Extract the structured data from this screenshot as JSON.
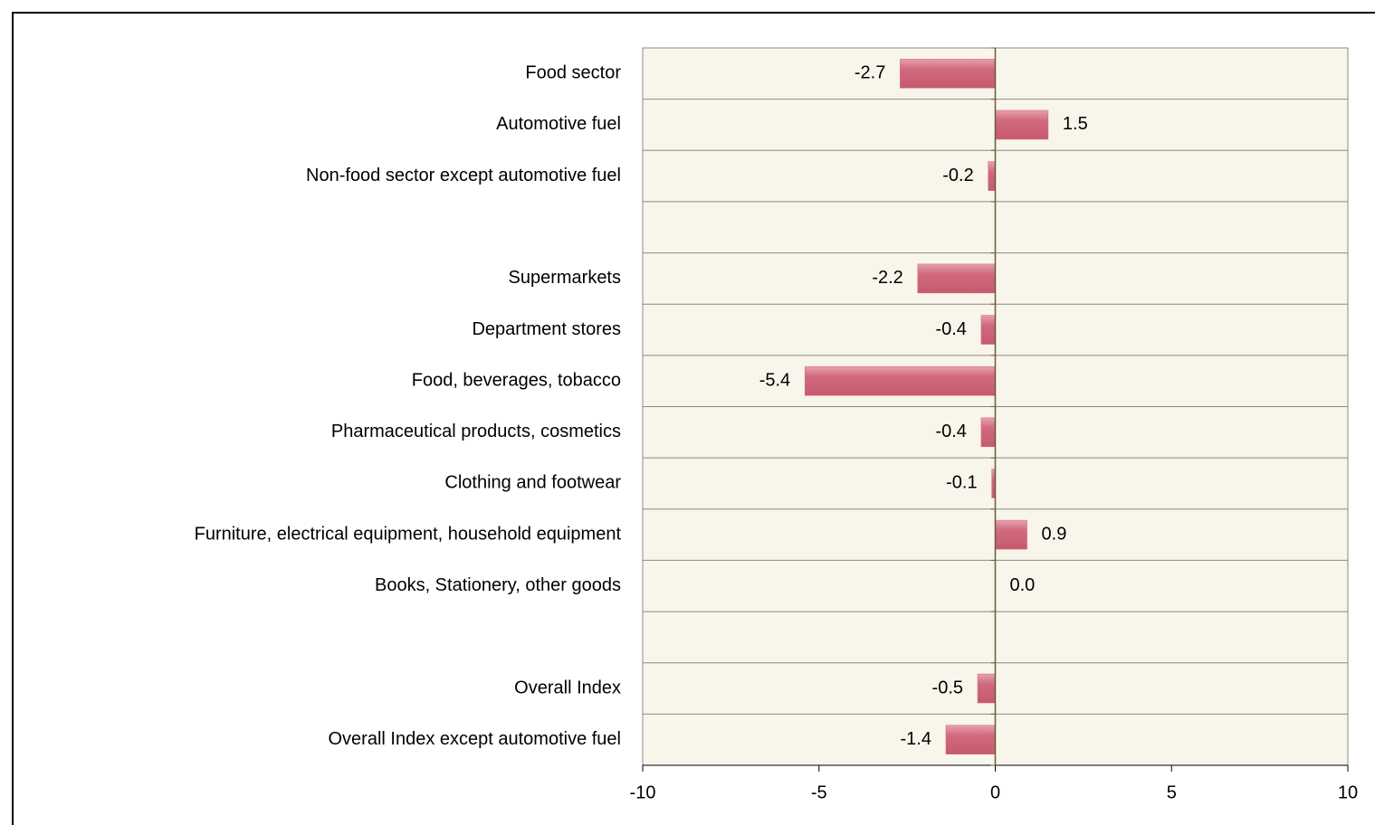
{
  "chart_data": {
    "type": "barh",
    "categories": [
      "Food sector",
      "Automotive fuel",
      "Non-food sector except automotive fuel",
      null,
      "Supermarkets",
      "Department stores",
      "Food, beverages, tobacco",
      "Pharmaceutical products, cosmetics",
      "Clothing and footwear",
      "Furniture, electrical equipment, household equipment",
      "Books, Stationery, other goods",
      null,
      "Overall  Index",
      "Overall Index except automotive fuel"
    ],
    "values": [
      -2.7,
      1.5,
      -0.2,
      null,
      -2.2,
      -0.4,
      -5.4,
      -0.4,
      -0.1,
      0.9,
      0.0,
      null,
      -0.5,
      -1.4
    ],
    "value_labels": [
      "-2.7",
      "1.5",
      "-0.2",
      null,
      "-2.2",
      "-0.4",
      "-5.4",
      "-0.4",
      "-0.1",
      "0.9",
      "0.0",
      null,
      "-0.5",
      "-1.4"
    ],
    "color": "#d06a7c",
    "xlim": [
      -10,
      10
    ],
    "xticks": [
      -10,
      -5,
      0,
      5,
      10
    ],
    "grid": true
  }
}
